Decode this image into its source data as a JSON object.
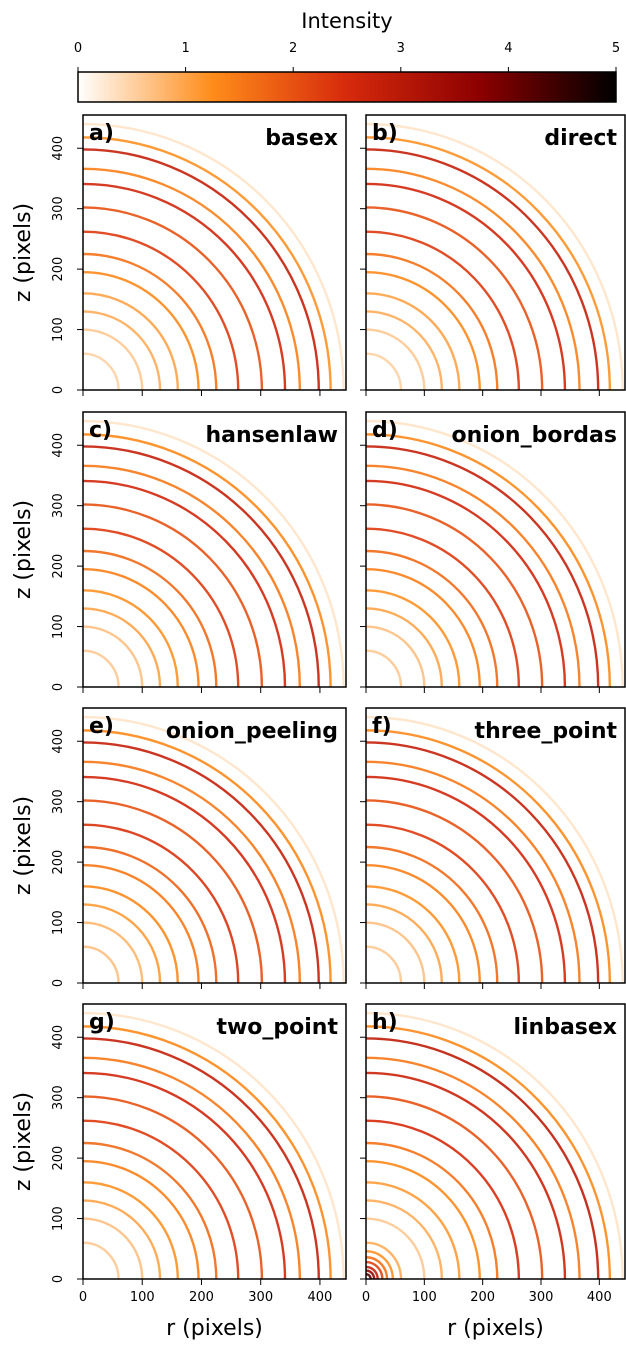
{
  "chart_data": [
    {
      "type": "colorbar",
      "label": "Intensity",
      "lim": [
        0,
        5
      ],
      "ticks": [
        0,
        1,
        2,
        3,
        4,
        5
      ],
      "colors": [
        "#ffffff",
        "#ff8c1a",
        "#d62a0c",
        "#8b0000",
        "#000000"
      ]
    },
    {
      "type": "image",
      "label": "a)",
      "title": "basex",
      "xlim": [
        0,
        444
      ],
      "ylim": [
        0,
        455
      ],
      "xticks": [
        0,
        100,
        200,
        300,
        400
      ],
      "yticks": [
        0,
        100,
        200,
        300,
        400
      ],
      "ylabel": "z (pixels)",
      "rings": {
        "radius": [
          60,
          100,
          130,
          160,
          195,
          225,
          262,
          302,
          341,
          366,
          398,
          418,
          440
        ],
        "intensity": [
          0.5,
          0.6,
          0.9,
          1.0,
          1.3,
          1.6,
          2.3,
          2.0,
          2.6,
          1.4,
          2.8,
          1.2,
          0.3
        ]
      }
    },
    {
      "type": "image",
      "label": "b)",
      "title": "direct",
      "xlim": [
        0,
        444
      ],
      "ylim": [
        0,
        455
      ],
      "xticks": [
        0,
        100,
        200,
        300,
        400
      ],
      "yticks": [
        0,
        100,
        200,
        300,
        400
      ],
      "rings": {
        "radius": [
          60,
          100,
          130,
          160,
          195,
          225,
          262,
          302,
          341,
          366,
          398,
          418,
          440
        ],
        "intensity": [
          0.5,
          0.6,
          0.9,
          1.0,
          1.3,
          1.6,
          2.3,
          2.0,
          2.6,
          1.4,
          2.8,
          1.2,
          0.3
        ]
      }
    },
    {
      "type": "image",
      "label": "c)",
      "title": "hansenlaw",
      "xlim": [
        0,
        444
      ],
      "ylim": [
        0,
        455
      ],
      "xticks": [
        0,
        100,
        200,
        300,
        400
      ],
      "yticks": [
        0,
        100,
        200,
        300,
        400
      ],
      "ylabel": "z (pixels)",
      "rings": {
        "radius": [
          60,
          100,
          130,
          160,
          195,
          225,
          262,
          302,
          341,
          366,
          398,
          418,
          440
        ],
        "intensity": [
          0.6,
          0.7,
          1.0,
          1.2,
          1.4,
          1.7,
          2.3,
          2.0,
          2.6,
          1.5,
          2.8,
          1.3,
          0.3
        ]
      }
    },
    {
      "type": "image",
      "label": "d)",
      "title": "onion_bordas",
      "xlim": [
        0,
        444
      ],
      "ylim": [
        0,
        455
      ],
      "xticks": [
        0,
        100,
        200,
        300,
        400
      ],
      "yticks": [
        0,
        100,
        200,
        300,
        400
      ],
      "rings": {
        "radius": [
          60,
          100,
          130,
          160,
          195,
          225,
          262,
          302,
          341,
          366,
          398,
          418,
          440
        ],
        "intensity": [
          0.6,
          0.7,
          1.0,
          1.2,
          1.4,
          1.7,
          2.3,
          2.0,
          2.6,
          1.5,
          2.8,
          1.3,
          0.3
        ]
      }
    },
    {
      "type": "image",
      "label": "e)",
      "title": "onion_peeling",
      "xlim": [
        0,
        444
      ],
      "ylim": [
        0,
        455
      ],
      "xticks": [
        0,
        100,
        200,
        300,
        400
      ],
      "yticks": [
        0,
        100,
        200,
        300,
        400
      ],
      "ylabel": "z (pixels)",
      "rings": {
        "radius": [
          60,
          100,
          130,
          160,
          195,
          225,
          262,
          302,
          341,
          366,
          398,
          418,
          440
        ],
        "intensity": [
          0.7,
          0.8,
          1.1,
          1.3,
          1.5,
          1.8,
          2.4,
          2.0,
          2.6,
          1.5,
          2.8,
          1.3,
          0.3
        ]
      }
    },
    {
      "type": "image",
      "label": "f)",
      "title": "three_point",
      "xlim": [
        0,
        444
      ],
      "ylim": [
        0,
        455
      ],
      "xticks": [
        0,
        100,
        200,
        300,
        400
      ],
      "yticks": [
        0,
        100,
        200,
        300,
        400
      ],
      "rings": {
        "radius": [
          60,
          100,
          130,
          160,
          195,
          225,
          262,
          302,
          341,
          366,
          398,
          418,
          440
        ],
        "intensity": [
          0.6,
          0.7,
          1.0,
          1.2,
          1.4,
          1.7,
          2.3,
          2.0,
          2.6,
          1.5,
          2.8,
          1.3,
          0.3
        ]
      }
    },
    {
      "type": "image",
      "label": "g)",
      "title": "two_point",
      "xlim": [
        0,
        444
      ],
      "ylim": [
        0,
        455
      ],
      "xticks": [
        0,
        100,
        200,
        300,
        400
      ],
      "yticks": [
        0,
        100,
        200,
        300,
        400
      ],
      "ylabel": "z (pixels)",
      "xlabel": "r (pixels)",
      "rings": {
        "radius": [
          60,
          100,
          130,
          160,
          195,
          225,
          262,
          302,
          341,
          366,
          398,
          418,
          440
        ],
        "intensity": [
          0.6,
          0.7,
          1.0,
          1.2,
          1.4,
          1.7,
          2.3,
          2.0,
          2.6,
          1.5,
          2.8,
          1.3,
          0.3
        ]
      }
    },
    {
      "type": "image",
      "label": "h)",
      "title": "linbasex",
      "xlim": [
        0,
        444
      ],
      "ylim": [
        0,
        455
      ],
      "xticks": [
        0,
        100,
        200,
        300,
        400
      ],
      "yticks": [
        0,
        100,
        200,
        300,
        400
      ],
      "xlabel": "r (pixels)",
      "rings": {
        "radius": [
          8,
          14,
          20,
          28,
          36,
          46,
          60,
          100,
          130,
          160,
          195,
          225,
          262,
          302,
          341,
          366,
          398,
          418,
          440
        ],
        "intensity": [
          4.2,
          3.5,
          2.8,
          2.2,
          1.6,
          1.2,
          0.9,
          0.6,
          0.9,
          1.1,
          1.3,
          1.6,
          2.5,
          2.0,
          2.7,
          1.5,
          2.9,
          1.3,
          0.3
        ]
      }
    }
  ]
}
